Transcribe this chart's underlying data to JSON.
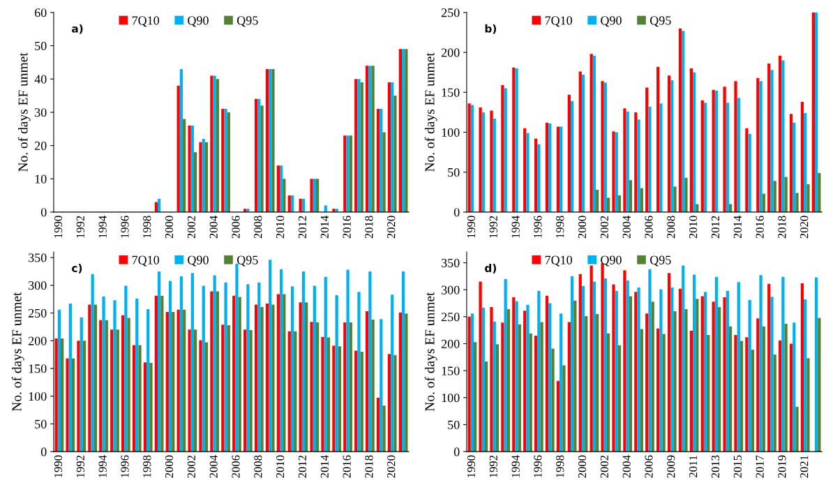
{
  "chart_data": [
    {
      "type": "bar",
      "ylabel": "No. of days EF unmet",
      "annotations": [
        "a)"
      ],
      "legend": "top",
      "grid": false,
      "ylim": [
        0,
        60
      ],
      "yticks": [
        0,
        10,
        20,
        30,
        40,
        50,
        60
      ],
      "categories": [
        "1990",
        null,
        "1992",
        null,
        "1994",
        null,
        "1996",
        null,
        "1998",
        null,
        "2000",
        null,
        "2002",
        null,
        "2004",
        null,
        "2006",
        null,
        "2008",
        null,
        "2010",
        null,
        "2012",
        null,
        "2014",
        null,
        "2016",
        null,
        "2018",
        null,
        "2020",
        null
      ],
      "series": [
        {
          "name": "7Q10",
          "color": "#ff0000",
          "values": [
            0,
            0,
            0,
            0,
            0,
            0,
            0,
            0,
            0,
            3,
            0,
            38,
            26,
            21,
            41,
            31,
            0,
            1,
            34,
            43,
            14,
            5,
            4,
            10,
            0,
            1,
            23,
            40,
            44,
            31,
            39,
            49
          ]
        },
        {
          "name": "Q90",
          "color": "#00b0f0",
          "values": [
            0,
            0,
            0,
            0,
            0,
            0,
            0,
            0,
            0,
            4,
            0,
            43,
            26,
            22,
            41,
            31,
            0,
            1,
            34,
            43,
            14,
            5,
            4,
            10,
            2,
            1,
            23,
            40,
            44,
            31,
            39,
            49
          ]
        },
        {
          "name": "Q95",
          "color": "#548235",
          "values": [
            0,
            0,
            0,
            0,
            0,
            0,
            0,
            0,
            0,
            0,
            0,
            28,
            18,
            21,
            40,
            30,
            0,
            0,
            32,
            43,
            10,
            0,
            0,
            10,
            0,
            0,
            23,
            39,
            44,
            24,
            35,
            49
          ]
        }
      ]
    },
    {
      "type": "bar",
      "ylabel": "No. of days EF unmet",
      "annotations": [
        "b)"
      ],
      "legend": "top",
      "grid": false,
      "ylim": [
        0,
        250
      ],
      "yticks": [
        0,
        50,
        100,
        150,
        200,
        250
      ],
      "categories": [
        "1990",
        null,
        "1992",
        null,
        "1994",
        null,
        "1996",
        null,
        "1998",
        null,
        "2000",
        null,
        "2002",
        null,
        "2004",
        null,
        "2006",
        null,
        "2008",
        null,
        "2010",
        null,
        "2012",
        null,
        "2014",
        null,
        "2016",
        null,
        "2018",
        null,
        "2020",
        null
      ],
      "series": [
        {
          "name": "7Q10",
          "color": "#ff0000",
          "values": [
            136,
            131,
            127,
            159,
            181,
            105,
            92,
            112,
            107,
            147,
            176,
            198,
            164,
            101,
            130,
            125,
            156,
            182,
            171,
            230,
            180,
            140,
            153,
            157,
            164,
            105,
            168,
            186,
            196,
            123,
            138,
            250
          ]
        },
        {
          "name": "Q90",
          "color": "#00b0f0",
          "values": [
            134,
            125,
            117,
            155,
            180,
            99,
            85,
            111,
            107,
            139,
            172,
            196,
            162,
            100,
            126,
            116,
            132,
            136,
            165,
            227,
            175,
            137,
            152,
            137,
            143,
            98,
            164,
            178,
            190,
            112,
            124,
            250
          ]
        },
        {
          "name": "Q95",
          "color": "#548235",
          "values": [
            0,
            0,
            0,
            0,
            0,
            0,
            0,
            0,
            0,
            0,
            0,
            28,
            18,
            21,
            40,
            30,
            0,
            0,
            32,
            43,
            10,
            0,
            0,
            10,
            0,
            0,
            23,
            39,
            44,
            24,
            35,
            49
          ]
        }
      ]
    },
    {
      "type": "bar",
      "ylabel": "No. of days EF unmet",
      "annotations": [
        "c)"
      ],
      "legend": "top",
      "grid": false,
      "ylim": [
        0,
        360
      ],
      "yticks": [
        0,
        50,
        100,
        150,
        200,
        250,
        300,
        350
      ],
      "categories": [
        "1990",
        null,
        "1992",
        null,
        "1994",
        null,
        "1996",
        null,
        "1998",
        null,
        "2000",
        null,
        "2002",
        null,
        "2004",
        null,
        "2006",
        null,
        "2008",
        null,
        "2010",
        null,
        "2012",
        null,
        "2014",
        null,
        "2016",
        null,
        "2018",
        null,
        "2020",
        null
      ],
      "series": [
        {
          "name": "7Q10",
          "color": "#ff0000",
          "values": [
            204,
            168,
            200,
            265,
            237,
            220,
            246,
            192,
            161,
            281,
            252,
            256,
            220,
            201,
            289,
            229,
            281,
            220,
            265,
            267,
            284,
            217,
            269,
            234,
            207,
            191,
            233,
            182,
            253,
            97,
            176,
            251
          ]
        },
        {
          "name": "Q90",
          "color": "#00b0f0",
          "values": [
            256,
            267,
            242,
            320,
            280,
            273,
            299,
            276,
            257,
            325,
            308,
            316,
            322,
            299,
            318,
            305,
            339,
            302,
            305,
            346,
            329,
            298,
            325,
            299,
            315,
            282,
            328,
            288,
            325,
            239,
            283,
            325
          ]
        },
        {
          "name": "Q95",
          "color": "#548235",
          "values": [
            204,
            168,
            200,
            265,
            237,
            220,
            241,
            192,
            160,
            281,
            252,
            256,
            220,
            197,
            289,
            228,
            279,
            219,
            261,
            265,
            284,
            217,
            269,
            233,
            206,
            190,
            233,
            180,
            238,
            83,
            174,
            249
          ]
        }
      ]
    },
    {
      "type": "bar",
      "ylabel": "No. of days EF unmet",
      "annotations": [
        "d)"
      ],
      "legend": "top",
      "grid": false,
      "ylim": [
        0,
        370
      ],
      "yticks": [
        0,
        50,
        100,
        150,
        200,
        250,
        300,
        350
      ],
      "categories": [
        "1990",
        null,
        "1992",
        null,
        "1994",
        null,
        "1996",
        null,
        "1998",
        null,
        "2000",
        null,
        "2002",
        null,
        "2004",
        null,
        "2006",
        null,
        "2009",
        null,
        "2011",
        null,
        "2013",
        null,
        "2015",
        null,
        "2017",
        null,
        "2019",
        null,
        "2021",
        null
      ],
      "series": [
        {
          "name": "7Q10",
          "color": "#ff0000",
          "values": [
            250,
            315,
            268,
            239,
            286,
            261,
            215,
            289,
            131,
            240,
            329,
            345,
            349,
            310,
            336,
            296,
            256,
            228,
            331,
            302,
            224,
            288,
            278,
            286,
            216,
            212,
            247,
            311,
            206,
            200,
            312,
            0
          ]
        },
        {
          "name": "Q90",
          "color": "#00b0f0",
          "values": [
            256,
            267,
            241,
            320,
            279,
            272,
            298,
            275,
            256,
            325,
            307,
            315,
            321,
            298,
            317,
            304,
            338,
            301,
            304,
            345,
            328,
            296,
            324,
            298,
            314,
            281,
            327,
            287,
            324,
            239,
            282,
            323
          ]
        },
        {
          "name": "Q95",
          "color": "#548235",
          "values": [
            203,
            167,
            199,
            264,
            236,
            219,
            240,
            191,
            160,
            280,
            251,
            255,
            219,
            197,
            288,
            227,
            278,
            218,
            260,
            264,
            283,
            216,
            268,
            232,
            205,
            189,
            232,
            180,
            237,
            83,
            173,
            248
          ]
        }
      ]
    }
  ]
}
